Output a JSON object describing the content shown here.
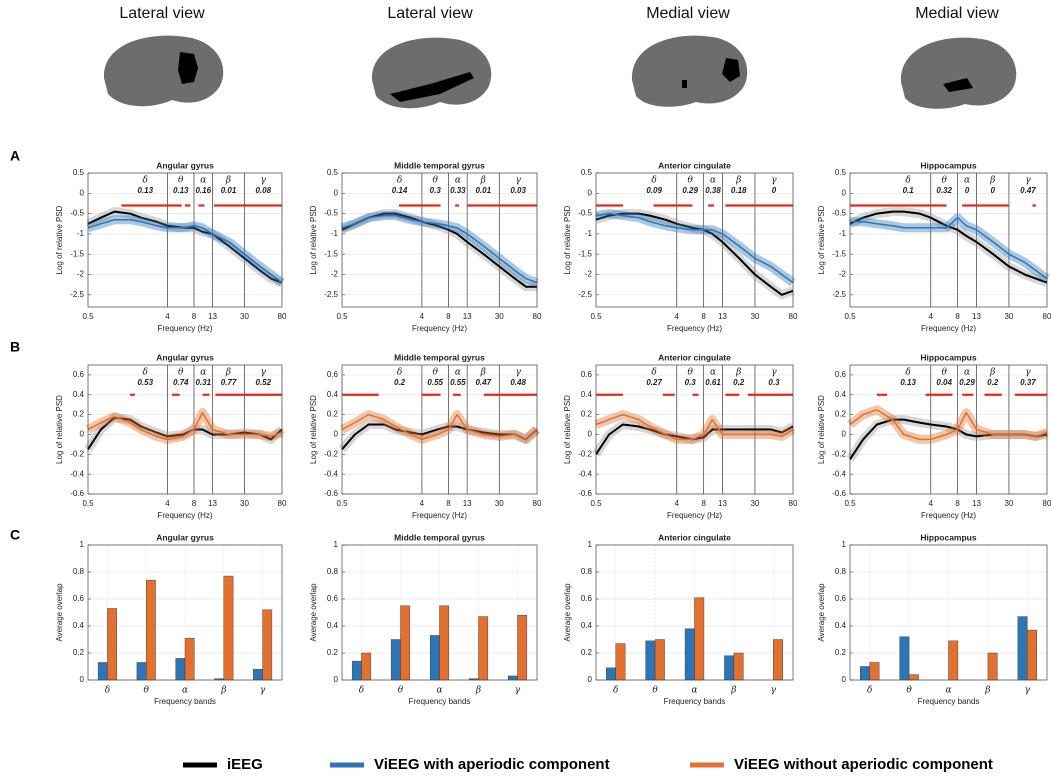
{
  "views": [
    "Lateral view",
    "Lateral view",
    "Medial view",
    "Medial view"
  ],
  "panels": [
    "A",
    "B",
    "C"
  ],
  "legend": [
    {
      "name": "iEEG",
      "color": "#000000"
    },
    {
      "name": "ViEEG with aperiodic component",
      "color": "#2e75b6"
    },
    {
      "name": "ViEEG without aperiodic component",
      "color": "#e2702f"
    }
  ],
  "chart_data": [
    {
      "type": "line",
      "title": "Angular gyrus",
      "xlabel": "Frequency (Hz)",
      "ylabel": "Log of relative PSD",
      "log_x": true,
      "grid": true,
      "x": [
        0.5,
        0.7,
        1,
        1.5,
        2,
        3,
        4,
        6,
        8,
        10,
        13,
        20,
        30,
        45,
        60,
        80
      ],
      "xlim": [
        0.5,
        80
      ],
      "xticks": [
        0.5,
        4,
        8,
        13,
        30,
        80
      ],
      "ylim": [
        -2.8,
        0.5
      ],
      "yticks": [
        -2.5,
        -2,
        -1.5,
        -1,
        -0.5,
        0,
        0.5
      ],
      "band_labels": [
        "δ",
        "θ",
        "α",
        "β",
        "γ"
      ],
      "band_values": [
        0.13,
        0.13,
        0.16,
        0.01,
        0.08
      ],
      "band_edges": [
        4,
        8,
        13,
        30
      ],
      "sig_level": -0.3,
      "sig_color": "#e8271b",
      "significance": [
        [
          1.2,
          5.8
        ],
        [
          6.3,
          7.3
        ],
        [
          9,
          10.5
        ],
        [
          13.5,
          80
        ]
      ],
      "series": [
        {
          "color": "#000000",
          "values": [
            -0.75,
            -0.6,
            -0.45,
            -0.5,
            -0.6,
            -0.7,
            -0.8,
            -0.85,
            -0.85,
            -0.95,
            -1.0,
            -1.3,
            -1.6,
            -1.9,
            -2.1,
            -2.2
          ]
        },
        {
          "color": "#2e75b6",
          "values": [
            -0.85,
            -0.75,
            -0.65,
            -0.65,
            -0.7,
            -0.8,
            -0.85,
            -0.85,
            -0.8,
            -0.85,
            -1.0,
            -1.2,
            -1.5,
            -1.8,
            -2.0,
            -2.2
          ]
        }
      ]
    },
    {
      "type": "line",
      "title": "Middle temporal gyrus",
      "xlabel": "Frequency (Hz)",
      "ylabel": "Log of relative PSD",
      "log_x": true,
      "grid": true,
      "x": [
        0.5,
        0.7,
        1,
        1.5,
        2,
        3,
        4,
        6,
        8,
        10,
        13,
        20,
        30,
        45,
        60,
        80
      ],
      "xlim": [
        0.5,
        80
      ],
      "xticks": [
        0.5,
        4,
        8,
        13,
        30,
        80
      ],
      "ylim": [
        -2.8,
        0.5
      ],
      "yticks": [
        -2.5,
        -2,
        -1.5,
        -1,
        -0.5,
        0,
        0.5
      ],
      "band_labels": [
        "δ",
        "θ",
        "α",
        "β",
        "γ"
      ],
      "band_values": [
        0.14,
        0.3,
        0.33,
        0.01,
        0.03
      ],
      "band_edges": [
        4,
        8,
        13,
        30
      ],
      "sig_level": -0.3,
      "sig_color": "#e8271b",
      "significance": [
        [
          2.2,
          6.5
        ],
        [
          9.5,
          10.5
        ],
        [
          13,
          80
        ]
      ],
      "series": [
        {
          "color": "#000000",
          "values": [
            -0.9,
            -0.75,
            -0.6,
            -0.5,
            -0.5,
            -0.6,
            -0.7,
            -0.8,
            -0.9,
            -1.0,
            -1.2,
            -1.5,
            -1.8,
            -2.1,
            -2.3,
            -2.3
          ]
        },
        {
          "color": "#2e75b6",
          "values": [
            -0.85,
            -0.75,
            -0.6,
            -0.55,
            -0.55,
            -0.65,
            -0.7,
            -0.75,
            -0.8,
            -0.85,
            -1.0,
            -1.3,
            -1.6,
            -1.9,
            -2.1,
            -2.2
          ]
        }
      ]
    },
    {
      "type": "line",
      "title": "Anterior cingulate",
      "xlabel": "Frequency (Hz)",
      "ylabel": "Log of relative PSD",
      "log_x": true,
      "grid": true,
      "x": [
        0.5,
        0.7,
        1,
        1.5,
        2,
        3,
        4,
        6,
        8,
        10,
        13,
        20,
        30,
        45,
        60,
        80
      ],
      "xlim": [
        0.5,
        80
      ],
      "xticks": [
        0.5,
        4,
        8,
        13,
        30,
        80
      ],
      "ylim": [
        -2.8,
        0.5
      ],
      "yticks": [
        -2.5,
        -2,
        -1.5,
        -1,
        -0.5,
        0,
        0.5
      ],
      "band_labels": [
        "δ",
        "θ",
        "α",
        "β",
        "γ"
      ],
      "band_values": [
        0.09,
        0.29,
        0.38,
        0.18,
        0
      ],
      "band_edges": [
        4,
        8,
        13,
        30
      ],
      "sig_level": -0.3,
      "sig_color": "#e8271b",
      "significance": [
        [
          0.5,
          1
        ],
        [
          2.2,
          6
        ],
        [
          9,
          10.5
        ],
        [
          14,
          80
        ]
      ],
      "series": [
        {
          "color": "#000000",
          "values": [
            -0.65,
            -0.55,
            -0.5,
            -0.5,
            -0.55,
            -0.65,
            -0.75,
            -0.85,
            -0.9,
            -1.0,
            -1.2,
            -1.6,
            -2.0,
            -2.3,
            -2.5,
            -2.4
          ]
        },
        {
          "color": "#2e75b6",
          "values": [
            -0.55,
            -0.5,
            -0.55,
            -0.6,
            -0.7,
            -0.8,
            -0.85,
            -0.9,
            -0.9,
            -0.9,
            -1.0,
            -1.3,
            -1.6,
            -1.8,
            -2.0,
            -2.2
          ]
        }
      ]
    },
    {
      "type": "line",
      "title": "Hippocampus",
      "xlabel": "Frequency (Hz)",
      "ylabel": "Log of relative PSD",
      "log_x": true,
      "grid": true,
      "x": [
        0.5,
        0.7,
        1,
        1.5,
        2,
        3,
        4,
        6,
        8,
        10,
        13,
        20,
        30,
        45,
        60,
        80
      ],
      "xlim": [
        0.5,
        80
      ],
      "xticks": [
        0.5,
        4,
        8,
        13,
        30,
        80
      ],
      "ylim": [
        -2.8,
        0.5
      ],
      "yticks": [
        -2.5,
        -2,
        -1.5,
        -1,
        -0.5,
        0,
        0.5
      ],
      "band_labels": [
        "δ",
        "θ",
        "α",
        "β",
        "γ"
      ],
      "band_values": [
        0.1,
        0.32,
        0,
        0,
        0.47
      ],
      "band_edges": [
        4,
        8,
        13,
        30
      ],
      "sig_level": -0.3,
      "sig_color": "#e8271b",
      "significance": [
        [
          0.5,
          6
        ],
        [
          9,
          30
        ],
        [
          55,
          60
        ]
      ],
      "series": [
        {
          "color": "#000000",
          "values": [
            -0.75,
            -0.6,
            -0.5,
            -0.45,
            -0.45,
            -0.5,
            -0.6,
            -0.8,
            -0.9,
            -1.05,
            -1.2,
            -1.5,
            -1.8,
            -2.0,
            -2.1,
            -2.2
          ]
        },
        {
          "color": "#2e75b6",
          "values": [
            -0.7,
            -0.7,
            -0.75,
            -0.8,
            -0.85,
            -0.85,
            -0.85,
            -0.85,
            -0.6,
            -0.8,
            -0.9,
            -1.2,
            -1.5,
            -1.7,
            -1.9,
            -2.1
          ]
        }
      ]
    },
    {
      "type": "line",
      "title": "Angular gyrus",
      "xlabel": "Frequency (Hz)",
      "ylabel": "Log of relative PSD",
      "log_x": true,
      "grid": true,
      "x": [
        0.5,
        0.7,
        1,
        1.5,
        2,
        3,
        4,
        6,
        8,
        10,
        13,
        20,
        30,
        45,
        60,
        80
      ],
      "xlim": [
        0.5,
        80
      ],
      "xticks": [
        0.5,
        4,
        8,
        13,
        30,
        80
      ],
      "ylim": [
        -0.6,
        0.7
      ],
      "yticks": [
        -0.6,
        -0.4,
        -0.2,
        0,
        0.2,
        0.4,
        0.6
      ],
      "band_labels": [
        "δ",
        "θ",
        "α",
        "β",
        "γ"
      ],
      "band_values": [
        0.53,
        0.74,
        0.31,
        0.77,
        0.52
      ],
      "band_edges": [
        4,
        8,
        13,
        30
      ],
      "sig_level": 0.4,
      "sig_color": "#e8271b",
      "significance": [
        [
          1.5,
          1.7
        ],
        [
          4.5,
          5.5
        ],
        [
          10,
          12
        ],
        [
          14,
          80
        ]
      ],
      "series": [
        {
          "color": "#000000",
          "values": [
            -0.15,
            0.05,
            0.17,
            0.15,
            0.08,
            0.02,
            -0.02,
            0.0,
            0.05,
            0.05,
            0.0,
            0.0,
            0.02,
            0.0,
            -0.05,
            0.05
          ]
        },
        {
          "color": "#e2702f",
          "values": [
            0.05,
            0.12,
            0.18,
            0.12,
            0.05,
            -0.02,
            -0.05,
            -0.02,
            0.05,
            0.22,
            0.05,
            0.0,
            0.0,
            0.0,
            -0.02,
            0.02
          ]
        }
      ]
    },
    {
      "type": "line",
      "title": "Middle temporal gyrus",
      "xlabel": "Frequency (Hz)",
      "ylabel": "Log of relative PSD",
      "log_x": true,
      "grid": true,
      "x": [
        0.5,
        0.7,
        1,
        1.5,
        2,
        3,
        4,
        6,
        8,
        10,
        13,
        20,
        30,
        45,
        60,
        80
      ],
      "xlim": [
        0.5,
        80
      ],
      "xticks": [
        0.5,
        4,
        8,
        13,
        30,
        80
      ],
      "ylim": [
        -0.6,
        0.7
      ],
      "yticks": [
        -0.6,
        -0.4,
        -0.2,
        0,
        0.2,
        0.4,
        0.6
      ],
      "band_labels": [
        "δ",
        "θ",
        "α",
        "β",
        "γ"
      ],
      "band_values": [
        0.2,
        0.55,
        0.55,
        0.47,
        0.48
      ],
      "band_edges": [
        4,
        8,
        13,
        30
      ],
      "sig_level": 0.4,
      "sig_color": "#e8271b",
      "significance": [
        [
          0.5,
          1.3
        ],
        [
          4,
          6.5
        ],
        [
          9,
          11
        ],
        [
          20,
          80
        ]
      ],
      "series": [
        {
          "color": "#000000",
          "values": [
            -0.15,
            0.0,
            0.1,
            0.1,
            0.05,
            0.02,
            0.0,
            0.05,
            0.08,
            0.08,
            0.05,
            0.02,
            0.0,
            0.0,
            -0.05,
            0.05
          ]
        },
        {
          "color": "#e2702f",
          "values": [
            0.05,
            0.12,
            0.2,
            0.15,
            0.08,
            0.0,
            -0.05,
            0.0,
            0.05,
            0.2,
            0.05,
            0.0,
            -0.02,
            0.0,
            -0.05,
            0.05
          ]
        }
      ]
    },
    {
      "type": "line",
      "title": "Anterior cingulate",
      "xlabel": "Frequency (Hz)",
      "ylabel": "Log of relative PSD",
      "log_x": true,
      "grid": true,
      "x": [
        0.5,
        0.7,
        1,
        1.5,
        2,
        3,
        4,
        6,
        8,
        10,
        13,
        20,
        30,
        45,
        60,
        80
      ],
      "xlim": [
        0.5,
        80
      ],
      "xticks": [
        0.5,
        4,
        8,
        13,
        30,
        80
      ],
      "ylim": [
        -0.6,
        0.7
      ],
      "yticks": [
        -0.6,
        -0.4,
        -0.2,
        0,
        0.2,
        0.4,
        0.6
      ],
      "band_labels": [
        "δ",
        "θ",
        "α",
        "β",
        "γ"
      ],
      "band_values": [
        0.27,
        0.3,
        0.61,
        0.2,
        0.3
      ],
      "band_edges": [
        4,
        8,
        13,
        30
      ],
      "sig_level": 0.4,
      "sig_color": "#e8271b",
      "significance": [
        [
          0.5,
          1
        ],
        [
          2.8,
          3.8
        ],
        [
          6,
          7
        ],
        [
          14,
          20
        ],
        [
          25,
          80
        ]
      ],
      "series": [
        {
          "color": "#000000",
          "values": [
            -0.2,
            0.0,
            0.1,
            0.08,
            0.05,
            0.0,
            -0.02,
            -0.05,
            -0.03,
            0.05,
            0.05,
            0.05,
            0.05,
            0.05,
            0.02,
            0.08
          ]
        },
        {
          "color": "#e2702f",
          "values": [
            0.1,
            0.15,
            0.2,
            0.15,
            0.08,
            0.0,
            -0.05,
            -0.05,
            0.0,
            0.15,
            0.0,
            0.0,
            0.0,
            0.0,
            -0.02,
            0.05
          ]
        }
      ]
    },
    {
      "type": "line",
      "title": "Hippocampus",
      "xlabel": "Frequency (Hz)",
      "ylabel": "Log of relative PSD",
      "log_x": true,
      "grid": true,
      "x": [
        0.5,
        0.7,
        1,
        1.5,
        2,
        3,
        4,
        6,
        8,
        10,
        13,
        20,
        30,
        45,
        60,
        80
      ],
      "xlim": [
        0.5,
        80
      ],
      "xticks": [
        0.5,
        4,
        8,
        13,
        30,
        80
      ],
      "ylim": [
        -0.6,
        0.7
      ],
      "yticks": [
        -0.6,
        -0.4,
        -0.2,
        0,
        0.2,
        0.4,
        0.6
      ],
      "band_labels": [
        "δ",
        "θ",
        "α",
        "β",
        "γ"
      ],
      "band_values": [
        0.13,
        0.04,
        0.29,
        0.2,
        0.37
      ],
      "band_edges": [
        4,
        8,
        13,
        30
      ],
      "sig_level": 0.4,
      "sig_color": "#e8271b",
      "significance": [
        [
          1,
          1.3
        ],
        [
          3.5,
          7
        ],
        [
          9,
          12
        ],
        [
          16,
          25
        ],
        [
          35,
          80
        ]
      ],
      "series": [
        {
          "color": "#000000",
          "values": [
            -0.25,
            -0.05,
            0.1,
            0.15,
            0.15,
            0.12,
            0.1,
            0.08,
            0.05,
            0.0,
            -0.02,
            0.0,
            0.0,
            0.0,
            -0.02,
            0.0
          ]
        },
        {
          "color": "#e2702f",
          "values": [
            0.1,
            0.2,
            0.25,
            0.15,
            0.0,
            -0.05,
            -0.05,
            0.0,
            0.05,
            0.22,
            0.05,
            0.0,
            0.0,
            0.0,
            -0.02,
            0.02
          ]
        }
      ]
    },
    {
      "type": "bar",
      "title": "Angular gyrus",
      "xlabel": "Frequency bands",
      "ylabel": "Average overlap",
      "grid": true,
      "categories": [
        "δ",
        "θ",
        "α",
        "β",
        "γ"
      ],
      "ylim": [
        0,
        1
      ],
      "yticks": [
        0,
        0.2,
        0.4,
        0.6,
        0.8,
        1
      ],
      "series": [
        {
          "color": "#2e75b6",
          "values": [
            0.13,
            0.13,
            0.16,
            0.01,
            0.08
          ]
        },
        {
          "color": "#e2702f",
          "values": [
            0.53,
            0.74,
            0.31,
            0.77,
            0.52
          ]
        }
      ]
    },
    {
      "type": "bar",
      "title": "Middle temporal gyrus",
      "xlabel": "Frequency bands",
      "ylabel": "Average overlap",
      "grid": true,
      "categories": [
        "δ",
        "θ",
        "α",
        "β",
        "γ"
      ],
      "ylim": [
        0,
        1
      ],
      "yticks": [
        0,
        0.2,
        0.4,
        0.6,
        0.8,
        1
      ],
      "series": [
        {
          "color": "#2e75b6",
          "values": [
            0.14,
            0.3,
            0.33,
            0.01,
            0.03
          ]
        },
        {
          "color": "#e2702f",
          "values": [
            0.2,
            0.55,
            0.55,
            0.47,
            0.48
          ]
        }
      ]
    },
    {
      "type": "bar",
      "title": "Anterior cingulate",
      "xlabel": "Frequency bands",
      "ylabel": "Average overlap",
      "grid": true,
      "categories": [
        "δ",
        "θ",
        "α",
        "β",
        "γ"
      ],
      "ylim": [
        0,
        1
      ],
      "yticks": [
        0,
        0.2,
        0.4,
        0.6,
        0.8,
        1
      ],
      "series": [
        {
          "color": "#2e75b6",
          "values": [
            0.09,
            0.29,
            0.38,
            0.18,
            0
          ]
        },
        {
          "color": "#e2702f",
          "values": [
            0.27,
            0.3,
            0.61,
            0.2,
            0.3
          ]
        }
      ]
    },
    {
      "type": "bar",
      "title": "Hippocampus",
      "xlabel": "Frequency bands",
      "ylabel": "Average overlap",
      "grid": true,
      "categories": [
        "δ",
        "θ",
        "α",
        "β",
        "γ"
      ],
      "ylim": [
        0,
        1
      ],
      "yticks": [
        0,
        0.2,
        0.4,
        0.6,
        0.8,
        1
      ],
      "series": [
        {
          "color": "#2e75b6",
          "values": [
            0.1,
            0.32,
            0,
            0,
            0.47
          ]
        },
        {
          "color": "#e2702f",
          "values": [
            0.13,
            0.04,
            0.29,
            0.2,
            0.37
          ]
        }
      ]
    }
  ]
}
